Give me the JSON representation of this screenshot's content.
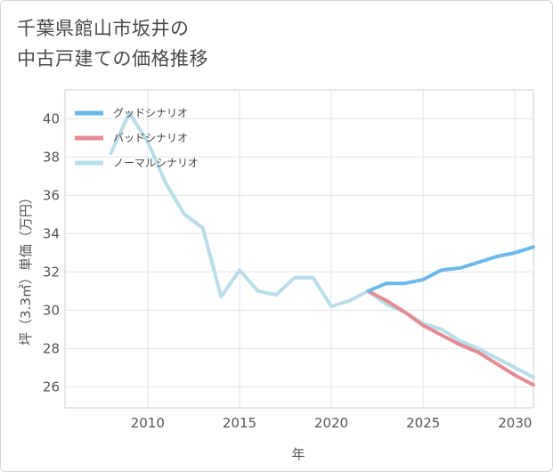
{
  "title": {
    "line1": "千葉県館山市坂井の",
    "line2": "中古戸建ての価格推移"
  },
  "chart_data": {
    "type": "line",
    "title": "千葉県館山市坂井の中古戸建ての価格推移",
    "xlabel": "年",
    "ylabel": "坪（3.3㎡）単価（万円）",
    "xlim": [
      2005.5,
      2031
    ],
    "ylim": [
      24.9,
      41.5
    ],
    "xticks": [
      2010,
      2015,
      2020,
      2025,
      2030
    ],
    "yticks": [
      26,
      28,
      30,
      32,
      34,
      36,
      38,
      40
    ],
    "grid": true,
    "legend_position": "top-left",
    "series": [
      {
        "name": "グッドシナリオ",
        "color": "#6cb8ea",
        "x": [
          2022,
          2023,
          2024,
          2025,
          2026,
          2027,
          2028,
          2029,
          2030,
          2031
        ],
        "values": [
          31.0,
          31.4,
          31.4,
          31.6,
          32.1,
          32.2,
          32.5,
          32.8,
          33.0,
          33.3
        ]
      },
      {
        "name": "バッドシナリオ",
        "color": "#e38c93",
        "x": [
          2022,
          2023,
          2024,
          2025,
          2026,
          2027,
          2028,
          2029,
          2030,
          2031
        ],
        "values": [
          31.0,
          30.5,
          29.9,
          29.2,
          28.7,
          28.2,
          27.8,
          27.2,
          26.6,
          26.1
        ]
      },
      {
        "name": "ノーマルシナリオ",
        "color": "#b9dde9",
        "x": [
          2008,
          2009,
          2010,
          2011,
          2012,
          2013,
          2014,
          2015,
          2016,
          2017,
          2018,
          2019,
          2020,
          2021,
          2022,
          2023,
          2024,
          2025,
          2026,
          2027,
          2028,
          2029,
          2030,
          2031
        ],
        "values": [
          38.2,
          40.3,
          38.8,
          36.6,
          35.0,
          34.3,
          30.7,
          32.1,
          31.0,
          30.8,
          31.7,
          31.7,
          30.2,
          30.5,
          31.0,
          30.3,
          29.9,
          29.3,
          29.0,
          28.4,
          28.0,
          27.5,
          27.0,
          26.5
        ]
      }
    ]
  }
}
